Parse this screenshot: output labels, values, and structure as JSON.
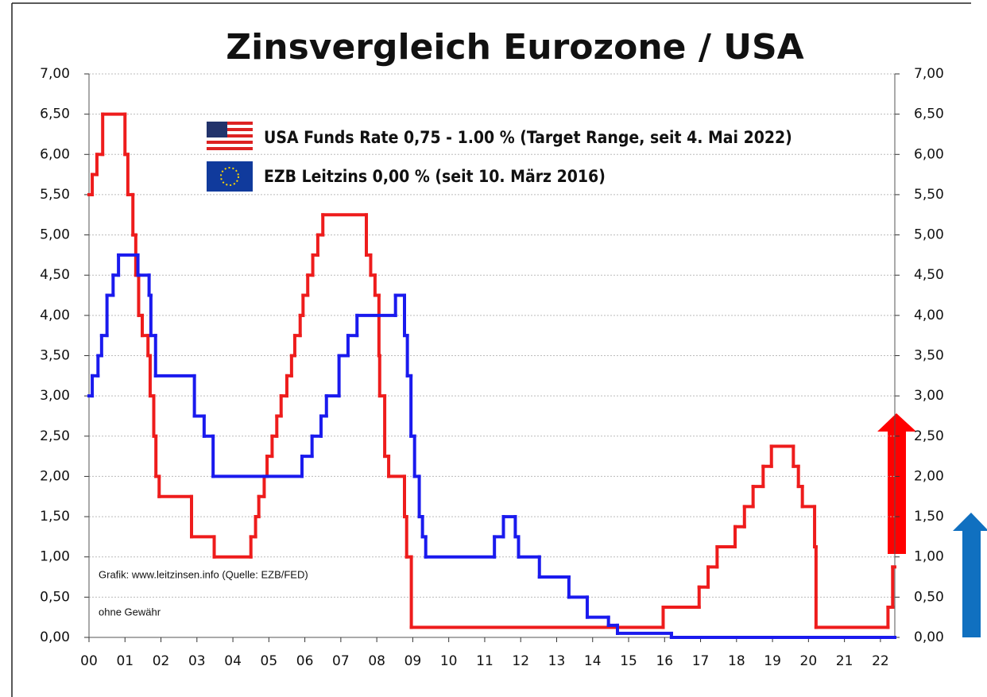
{
  "chart_data": {
    "type": "step",
    "title": "Zinsvergleich Eurozone / USA",
    "annotations": [
      "Grafik: www.leitzinsen.info (Quelle: EZB/FED)",
      "ohne Gewähr"
    ],
    "xlim": [
      2000,
      2022.4
    ],
    "xticks": [
      {
        "value": 2000,
        "label": "00"
      },
      {
        "value": 2001,
        "label": "01"
      },
      {
        "value": 2002,
        "label": "02"
      },
      {
        "value": 2003,
        "label": "03"
      },
      {
        "value": 2004,
        "label": "04"
      },
      {
        "value": 2005,
        "label": "05"
      },
      {
        "value": 2006,
        "label": "06"
      },
      {
        "value": 2007,
        "label": "07"
      },
      {
        "value": 2008,
        "label": "08"
      },
      {
        "value": 2009,
        "label": "09"
      },
      {
        "value": 2010,
        "label": "10"
      },
      {
        "value": 2011,
        "label": "11"
      },
      {
        "value": 2012,
        "label": "12"
      },
      {
        "value": 2013,
        "label": "13"
      },
      {
        "value": 2014,
        "label": "14"
      },
      {
        "value": 2015,
        "label": "15"
      },
      {
        "value": 2016,
        "label": "16"
      },
      {
        "value": 2017,
        "label": "17"
      },
      {
        "value": 2018,
        "label": "18"
      },
      {
        "value": 2019,
        "label": "19"
      },
      {
        "value": 2020,
        "label": "20"
      },
      {
        "value": 2021,
        "label": "21"
      },
      {
        "value": 2022,
        "label": "22"
      }
    ],
    "ylim": [
      0,
      7
    ],
    "yticks": [
      {
        "value": 0,
        "label": "0,00"
      },
      {
        "value": 0.5,
        "label": "0,50"
      },
      {
        "value": 1,
        "label": "1,00"
      },
      {
        "value": 1.5,
        "label": "1,50"
      },
      {
        "value": 2,
        "label": "2,00"
      },
      {
        "value": 2.5,
        "label": "2,50"
      },
      {
        "value": 3,
        "label": "3,00"
      },
      {
        "value": 3.5,
        "label": "3,50"
      },
      {
        "value": 4,
        "label": "4,00"
      },
      {
        "value": 4.5,
        "label": "4,50"
      },
      {
        "value": 5,
        "label": "5,00"
      },
      {
        "value": 5.5,
        "label": "5,50"
      },
      {
        "value": 6,
        "label": "6,00"
      },
      {
        "value": 6.5,
        "label": "6,50"
      },
      {
        "value": 7,
        "label": "7,00"
      }
    ],
    "y2lim": [
      0,
      7
    ],
    "y2ticks": [
      {
        "value": 0,
        "label": "0,00"
      },
      {
        "value": 0.5,
        "label": "0,50"
      },
      {
        "value": 1,
        "label": "1,00"
      },
      {
        "value": 1.5,
        "label": "1,50"
      },
      {
        "value": 2,
        "label": "2,00"
      },
      {
        "value": 2.5,
        "label": "2,50"
      },
      {
        "value": 3,
        "label": "3,00"
      },
      {
        "value": 3.5,
        "label": "3,50"
      },
      {
        "value": 4,
        "label": "4,00"
      },
      {
        "value": 4.5,
        "label": "4,50"
      },
      {
        "value": 5,
        "label": "5,00"
      },
      {
        "value": 5.5,
        "label": "5,50"
      },
      {
        "value": 6,
        "label": "6,00"
      },
      {
        "value": 6.5,
        "label": "6,50"
      },
      {
        "value": 7,
        "label": "7,00"
      }
    ],
    "grid": true,
    "series": [
      {
        "name": "USA Funds Rate 0,75 - 1.00 % (Target Range, seit 4. Mai 2022)",
        "color": "#ee1c1c",
        "x": [
          2000.0,
          2000.09,
          2000.22,
          2000.38,
          2001.0,
          2001.08,
          2001.22,
          2001.3,
          2001.38,
          2001.48,
          2001.64,
          2001.7,
          2001.8,
          2001.86,
          2001.95,
          2002.85,
          2003.48,
          2004.5,
          2004.63,
          2004.72,
          2004.87,
          2004.95,
          2005.09,
          2005.22,
          2005.34,
          2005.5,
          2005.63,
          2005.72,
          2005.87,
          2005.95,
          2006.08,
          2006.22,
          2006.36,
          2006.5,
          2007.71,
          2007.83,
          2007.95,
          2008.06,
          2008.08,
          2008.22,
          2008.33,
          2008.77,
          2008.83,
          2008.96,
          2015.96,
          2016.96,
          2017.21,
          2017.46,
          2017.96,
          2018.22,
          2018.46,
          2018.74,
          2018.97,
          2019.58,
          2019.72,
          2019.83,
          2020.17,
          2020.21,
          2022.21,
          2022.34
        ],
        "values": [
          5.5,
          5.75,
          6.0,
          6.5,
          6.0,
          5.5,
          5.0,
          4.5,
          4.0,
          3.75,
          3.5,
          3.0,
          2.5,
          2.0,
          1.75,
          1.25,
          1.0,
          1.25,
          1.5,
          1.75,
          2.0,
          2.25,
          2.5,
          2.75,
          3.0,
          3.25,
          3.5,
          3.75,
          4.0,
          4.25,
          4.5,
          4.75,
          5.0,
          5.25,
          4.75,
          4.5,
          4.25,
          3.5,
          3.0,
          2.25,
          2.0,
          1.5,
          1.0,
          0.125,
          0.375,
          0.625,
          0.875,
          1.125,
          1.375,
          1.625,
          1.875,
          2.125,
          2.375,
          2.125,
          1.875,
          1.625,
          1.125,
          0.125,
          0.375,
          0.875
        ]
      },
      {
        "name": "EZB Leitzins 0,00 %  (seit 10. März 2016)",
        "color": "#1a1aee",
        "x": [
          2000.0,
          2000.09,
          2000.25,
          2000.35,
          2000.5,
          2000.67,
          2000.82,
          2001.36,
          2001.67,
          2001.72,
          2001.85,
          2002.93,
          2003.2,
          2003.45,
          2005.92,
          2006.2,
          2006.45,
          2006.6,
          2006.95,
          2007.2,
          2007.45,
          2008.52,
          2008.77,
          2008.85,
          2008.95,
          2009.05,
          2009.18,
          2009.27,
          2009.36,
          2011.27,
          2011.52,
          2011.85,
          2011.94,
          2012.52,
          2013.34,
          2013.85,
          2014.44,
          2014.69,
          2016.19
        ],
        "values": [
          3.0,
          3.25,
          3.5,
          3.75,
          4.25,
          4.5,
          4.75,
          4.5,
          4.25,
          3.75,
          3.25,
          2.75,
          2.5,
          2.0,
          2.25,
          2.5,
          2.75,
          3.0,
          3.5,
          3.75,
          4.0,
          4.25,
          3.75,
          3.25,
          2.5,
          2.0,
          1.5,
          1.25,
          1.0,
          1.25,
          1.5,
          1.25,
          1.0,
          0.75,
          0.5,
          0.25,
          0.15,
          0.05,
          0.0
        ]
      }
    ]
  }
}
